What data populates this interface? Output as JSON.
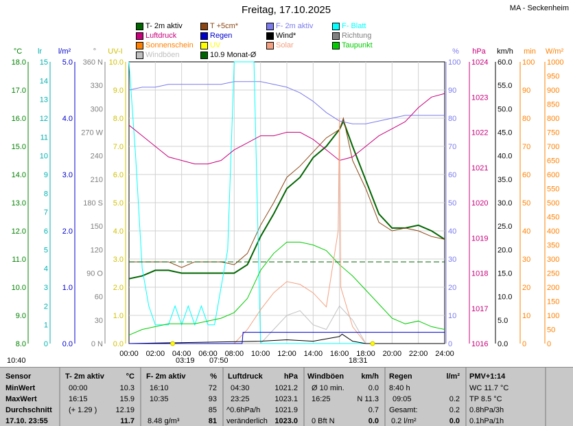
{
  "title": "Freitag, 17.10.2025",
  "station": "MA - Seckenheim",
  "legend": [
    {
      "label": "T- 2m aktiv",
      "color": "#006400"
    },
    {
      "label": "T +5cm*",
      "color": "#8b4513"
    },
    {
      "label": "F- 2m aktiv",
      "color": "#7b7bee"
    },
    {
      "label": "F- Blatt",
      "color": "#00ffff"
    },
    {
      "label": "Luftdruck",
      "color": "#c8007c"
    },
    {
      "label": "Regen",
      "color": "#0000cc"
    },
    {
      "label": "Wind*",
      "color": "#000000"
    },
    {
      "label": "Richtung",
      "color": "#808080"
    },
    {
      "label": "Sonnenschein",
      "color": "#ff8000"
    },
    {
      "label": "UV",
      "color": "#ffff00"
    },
    {
      "label": "Solar",
      "color": "#f4a080"
    },
    {
      "label": "Taupunkt",
      "color": "#00cc00"
    },
    {
      "label": "Windböen",
      "color": "#c0c0c0"
    },
    {
      "label": "10.9 Monat-Ø",
      "color": "#006400"
    }
  ],
  "axes_left": [
    {
      "unit": "°C",
      "color": "#008000",
      "ticks": [
        "18.0",
        "17.0",
        "16.0",
        "15.0",
        "14.0",
        "13.0",
        "12.0",
        "11.0",
        "10.0",
        "9.0",
        "8.0"
      ]
    },
    {
      "unit": "lr",
      "color": "#00b0b0",
      "ticks": [
        "15",
        "14",
        "13",
        "12",
        "11",
        "10",
        "9",
        "8",
        "7",
        "6",
        "5",
        "4",
        "3",
        "2",
        "1",
        "0"
      ]
    },
    {
      "unit": "l/m²",
      "color": "#0000cc",
      "ticks": [
        "5.0",
        "4.0",
        "3.0",
        "2.0",
        "1.0",
        "0.0"
      ]
    },
    {
      "unit": "°",
      "color": "#808080",
      "ticks": [
        "360 N",
        "330",
        "300",
        "270 W",
        "240",
        "210",
        "180 S",
        "150",
        "120",
        "90 O",
        "60",
        "30",
        "0 N"
      ]
    },
    {
      "unit": "UV-I",
      "color": "#d0c000",
      "ticks": [
        "10.0",
        "9.0",
        "8.0",
        "7.0",
        "6.0",
        "5.0",
        "4.0",
        "3.0",
        "2.0",
        "1.0",
        "0.0"
      ]
    }
  ],
  "axes_right": [
    {
      "unit": "%",
      "color": "#7b7bee",
      "ticks": [
        "100",
        "90",
        "80",
        "70",
        "60",
        "50",
        "40",
        "30",
        "20",
        "10",
        "0"
      ]
    },
    {
      "unit": "hPa",
      "color": "#c8007c",
      "ticks": [
        "1024",
        "1023",
        "1022",
        "1021",
        "1020",
        "1019",
        "1018",
        "1017",
        "1016"
      ]
    },
    {
      "unit": "km/h",
      "color": "#000000",
      "ticks": [
        "60.0",
        "55.0",
        "50.0",
        "45.0",
        "40.0",
        "35.0",
        "30.0",
        "25.0",
        "20.0",
        "15.0",
        "10.0",
        "5.0",
        "0.0"
      ]
    },
    {
      "unit": "min",
      "color": "#ff8000",
      "ticks": [
        "100",
        "90",
        "80",
        "70",
        "60",
        "50",
        "40",
        "30",
        "20",
        "10",
        "0"
      ]
    },
    {
      "unit": "W/m²",
      "color": "#ff8000",
      "ticks": [
        "1000",
        "950",
        "900",
        "850",
        "800",
        "750",
        "700",
        "650",
        "600",
        "550",
        "500",
        "450",
        "400",
        "350",
        "300",
        "250",
        "200",
        "150",
        "100",
        "50",
        "0"
      ]
    }
  ],
  "x_ticks": [
    "00:00",
    "02:00",
    "04:00",
    "06:00",
    "08:00",
    "10:00",
    "12:00",
    "14:00",
    "16:00",
    "18:00",
    "20:00",
    "22:00",
    "24:00"
  ],
  "sun_events": {
    "sunrise": "03:19",
    "sunrise2": "07:50",
    "sunset": "18:31",
    "date_left": "10:40"
  },
  "chart_data": {
    "type": "line",
    "xlabel": "",
    "xlim_hours": [
      0,
      24
    ],
    "grid": true,
    "legend_placement": "top",
    "series": [
      {
        "name": "T- 2m aktiv",
        "unit": "°C",
        "x": [
          0,
          1,
          2,
          3,
          4,
          5,
          6,
          7,
          8,
          9,
          10,
          11,
          12,
          13,
          14,
          15,
          16,
          16.3,
          17,
          18,
          19,
          20,
          21,
          22,
          23,
          24
        ],
        "values": [
          10.3,
          10.4,
          10.6,
          10.6,
          10.5,
          10.5,
          10.5,
          10.5,
          10.5,
          10.8,
          11.8,
          12.6,
          13.5,
          13.9,
          14.6,
          15.0,
          15.6,
          15.9,
          15.0,
          13.8,
          12.6,
          12.1,
          12.1,
          12.2,
          12.0,
          11.7
        ]
      },
      {
        "name": "T +5cm*",
        "unit": "°C",
        "x": [
          0,
          1,
          2,
          3,
          4,
          5,
          6,
          7,
          8,
          9,
          10,
          11,
          12,
          13,
          14,
          15,
          16,
          16.3,
          17,
          18,
          19,
          20,
          21,
          22,
          23,
          24
        ],
        "values": [
          10.9,
          10.9,
          10.9,
          10.9,
          10.7,
          10.9,
          10.9,
          10.9,
          10.8,
          11.2,
          12.2,
          13.0,
          13.9,
          14.3,
          14.8,
          15.3,
          15.6,
          16.0,
          14.5,
          13.5,
          12.3,
          12.0,
          12.1,
          12.0,
          11.8,
          11.7
        ]
      },
      {
        "name": "F- 2m aktiv",
        "unit": "%",
        "x": [
          0,
          1,
          2,
          3,
          4,
          5,
          6,
          7,
          8,
          9,
          10,
          11,
          12,
          13,
          14,
          15,
          16,
          17,
          18,
          19,
          20,
          21,
          22,
          23,
          24
        ],
        "values": [
          90,
          91,
          91,
          92,
          92,
          92,
          92,
          92,
          93,
          93,
          93,
          92,
          91,
          89,
          86,
          82,
          79,
          78,
          78,
          79,
          80,
          81,
          81,
          81,
          81
        ]
      },
      {
        "name": "F- Blatt",
        "unit": "lr",
        "x": [
          0,
          0.5,
          1,
          1.5,
          2,
          3,
          3.5,
          4,
          4.5,
          5,
          5.5,
          6,
          6.5,
          7,
          7.5,
          8,
          8.3,
          8.6,
          9,
          9.5,
          10,
          11,
          12,
          24
        ],
        "values": [
          15,
          10,
          4,
          2,
          1,
          1,
          2,
          1,
          2,
          1,
          2,
          1,
          1,
          3,
          5,
          15,
          15,
          15,
          15,
          15,
          0,
          0,
          0,
          0
        ]
      },
      {
        "name": "Luftdruck",
        "unit": "hPa",
        "x": [
          0,
          1,
          2,
          3,
          4,
          5,
          6,
          7,
          8,
          9,
          10,
          11,
          12,
          13,
          14,
          15,
          16,
          17,
          18,
          19,
          20,
          21,
          22,
          23,
          24
        ],
        "values": [
          1022.2,
          1021.9,
          1021.6,
          1021.3,
          1021.2,
          1021.1,
          1021.1,
          1021.2,
          1021.5,
          1021.7,
          1021.9,
          1021.9,
          1022.0,
          1022.0,
          1021.8,
          1021.5,
          1021.2,
          1021.3,
          1021.6,
          1021.9,
          1022.1,
          1022.3,
          1022.7,
          1023.0,
          1023.1
        ]
      },
      {
        "name": "Taupunkt",
        "unit": "°C",
        "x": [
          0,
          1,
          2,
          3,
          4,
          5,
          6,
          7,
          8,
          9,
          10,
          11,
          12,
          13,
          14,
          15,
          16,
          17,
          18,
          19,
          20,
          21,
          22,
          23,
          24
        ],
        "values": [
          8.3,
          8.5,
          8.6,
          8.7,
          8.7,
          8.7,
          8.8,
          8.9,
          9.1,
          9.6,
          10.6,
          11.2,
          11.6,
          11.6,
          11.5,
          11.3,
          10.8,
          10.4,
          9.9,
          9.4,
          8.9,
          8.7,
          8.8,
          8.6,
          8.5
        ]
      },
      {
        "name": "Solar",
        "unit": "W/m²",
        "x": [
          8,
          9,
          10,
          11,
          12,
          13,
          14,
          15,
          15.9,
          16,
          16.1,
          17,
          18,
          24
        ],
        "values": [
          0,
          50,
          120,
          180,
          220,
          210,
          180,
          130,
          400,
          800,
          200,
          60,
          0,
          0
        ]
      },
      {
        "name": "Windböen",
        "unit": "km/h",
        "x": [
          0,
          10,
          11,
          12,
          13,
          14,
          15,
          16,
          17,
          18,
          24
        ],
        "values": [
          0,
          0,
          3,
          6,
          7,
          4,
          3,
          8,
          5,
          0,
          0
        ]
      },
      {
        "name": "Wind*",
        "unit": "km/h",
        "x": [
          0,
          10,
          12,
          14,
          16,
          16.2,
          17,
          18,
          24
        ],
        "values": [
          0,
          0.5,
          0.8,
          0.5,
          1.5,
          2.0,
          0.5,
          0,
          0
        ]
      },
      {
        "name": "Regen",
        "unit": "l/m²",
        "x": [
          0,
          8.6,
          8.67,
          24
        ],
        "values": [
          0,
          0,
          0.2,
          0.2
        ]
      },
      {
        "name": "10.9 Monat-Ø",
        "unit": "°C",
        "x": [
          0,
          24
        ],
        "values": [
          10.9,
          10.9
        ]
      }
    ]
  },
  "table": {
    "headers": [
      {
        "name": "Sensor",
        "unit": ""
      },
      {
        "name": "T- 2m aktiv",
        "unit": "°C"
      },
      {
        "name": "F- 2m aktiv",
        "unit": "%"
      },
      {
        "name": "Luftdruck",
        "unit": "hPa"
      },
      {
        "name": "Windböen",
        "unit": "km/h"
      },
      {
        "name": "Regen",
        "unit": "l/m²"
      },
      {
        "name": "PMV+1:14",
        "unit": ""
      }
    ],
    "rows": [
      {
        "label": "MinWert",
        "t_time": "00:00",
        "t_val": "10.3",
        "f_time": "16:10",
        "f_val": "72",
        "p_time": "04:30",
        "p_val": "1021.2",
        "w_time": "Ø 10 min.",
        "w_val": "0.0",
        "r_time": "8:40 h",
        "r_val": "",
        "x": "WC 11.7 °C"
      },
      {
        "label": "MaxWert",
        "t_time": "16:15",
        "t_val": "15.9",
        "f_time": "10:35",
        "f_val": "93",
        "p_time": "23:25",
        "p_val": "1023.1",
        "w_time": "16:25",
        "w_val": "N 11.3",
        "r_time": "09:05",
        "r_val": "0.2",
        "x": "TP 8.5 °C"
      },
      {
        "label": "Durchschnitt",
        "t_time": "(+ 1.29 )",
        "t_val": "12.19",
        "f_time": "",
        "f_val": "85",
        "p_time": "^0.6hPa/h",
        "p_val": "1021.9",
        "w_time": "",
        "w_val": "0.7",
        "r_time": "Gesamt:",
        "r_val": "0.2",
        "x": "0.8hPa/3h"
      },
      {
        "label": "17.10. 23:55",
        "t_time": "",
        "t_val": "11.7",
        "f_time": "8.48 g/m³",
        "f_val": "81",
        "p_time": "veränderlich",
        "p_val": "1023.0",
        "w_time": "0 Bft N",
        "w_val": "0.0",
        "r_time": "0.2 l/m²",
        "r_val": "0.0",
        "x": "0.1hPa/1h"
      }
    ]
  }
}
